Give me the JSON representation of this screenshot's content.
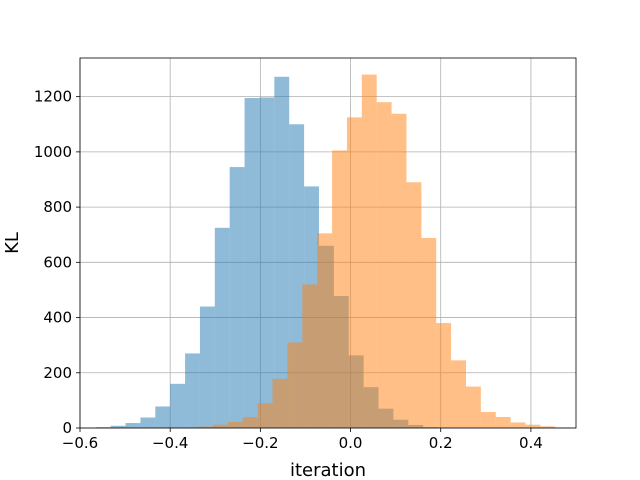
{
  "chart_data": {
    "type": "histogram",
    "title": "",
    "xlabel": "iteration",
    "ylabel": "KL",
    "xlim": [
      -0.6,
      0.5
    ],
    "ylim": [
      0,
      1340
    ],
    "grid": true,
    "xticks": [
      -0.6,
      -0.4,
      -0.2,
      0.0,
      0.2,
      0.4
    ],
    "xtick_labels": [
      "−0.6",
      "−0.4",
      "−0.2",
      "0.0",
      "0.2",
      "0.4"
    ],
    "yticks": [
      0,
      200,
      400,
      600,
      800,
      1000,
      1200
    ],
    "ytick_labels": [
      "0",
      "200",
      "400",
      "600",
      "800",
      "1000",
      "1200"
    ],
    "series": [
      {
        "color": "#1f77b4",
        "opacity": 0.5,
        "bins": [
          [
            -0.565,
            -0.532,
            3
          ],
          [
            -0.532,
            -0.499,
            8
          ],
          [
            -0.499,
            -0.466,
            18
          ],
          [
            -0.466,
            -0.433,
            38
          ],
          [
            -0.433,
            -0.4,
            78
          ],
          [
            -0.4,
            -0.367,
            160
          ],
          [
            -0.367,
            -0.334,
            270
          ],
          [
            -0.334,
            -0.301,
            440
          ],
          [
            -0.301,
            -0.268,
            725
          ],
          [
            -0.268,
            -0.235,
            945
          ],
          [
            -0.235,
            -0.202,
            1195
          ],
          [
            -0.202,
            -0.169,
            1197
          ],
          [
            -0.169,
            -0.136,
            1272
          ],
          [
            -0.136,
            -0.103,
            1100
          ],
          [
            -0.103,
            -0.07,
            875
          ],
          [
            -0.07,
            -0.037,
            660
          ],
          [
            -0.037,
            -0.004,
            478
          ],
          [
            -0.004,
            0.029,
            263
          ],
          [
            0.029,
            0.062,
            148
          ],
          [
            0.062,
            0.095,
            70
          ],
          [
            0.095,
            0.128,
            30
          ],
          [
            0.128,
            0.161,
            11
          ],
          [
            0.161,
            0.194,
            3
          ]
        ]
      },
      {
        "color": "#ff7f0e",
        "opacity": 0.5,
        "bins": [
          [
            -0.371,
            -0.338,
            2
          ],
          [
            -0.338,
            -0.305,
            5
          ],
          [
            -0.305,
            -0.272,
            12
          ],
          [
            -0.272,
            -0.239,
            22
          ],
          [
            -0.239,
            -0.206,
            40
          ],
          [
            -0.206,
            -0.173,
            90
          ],
          [
            -0.173,
            -0.14,
            178
          ],
          [
            -0.14,
            -0.107,
            310
          ],
          [
            -0.107,
            -0.074,
            520
          ],
          [
            -0.074,
            -0.041,
            705
          ],
          [
            -0.041,
            -0.008,
            1005
          ],
          [
            -0.008,
            0.025,
            1125
          ],
          [
            0.025,
            0.058,
            1280
          ],
          [
            0.058,
            0.091,
            1180
          ],
          [
            0.091,
            0.124,
            1138
          ],
          [
            0.124,
            0.157,
            890
          ],
          [
            0.157,
            0.19,
            688
          ],
          [
            0.19,
            0.223,
            380
          ],
          [
            0.223,
            0.256,
            245
          ],
          [
            0.256,
            0.289,
            150
          ],
          [
            0.289,
            0.322,
            58
          ],
          [
            0.322,
            0.355,
            40
          ],
          [
            0.355,
            0.388,
            20
          ],
          [
            0.388,
            0.421,
            12
          ],
          [
            0.421,
            0.454,
            6
          ],
          [
            0.454,
            0.487,
            2
          ]
        ]
      }
    ]
  }
}
